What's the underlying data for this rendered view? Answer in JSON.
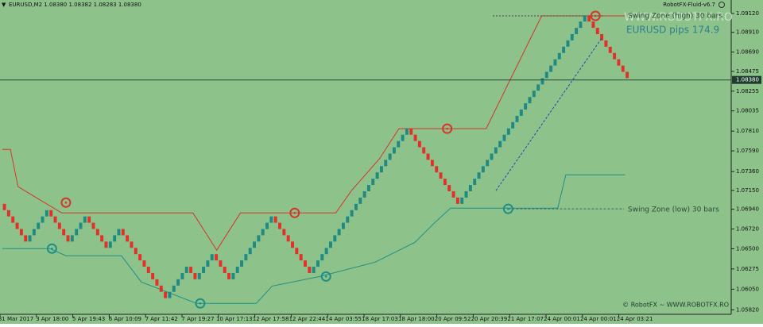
{
  "chart_data": {
    "type": "renko",
    "title": "EURUSD,M2  1.08380 1.08382 1.08283 1.08380",
    "indicator": "RobotFX-Fluid-v6.7",
    "watermark": "WWW.ROBOTFX.RO",
    "pips_text": "EURUSD pips 174.9",
    "swing_high_label": "Swing Zone (high) 30 bars",
    "swing_low_label": "Swing Zone (low) 30 bars",
    "copyright": "© RobotFX ~ WWW.ROBOTFX.RO",
    "up_color": "#1f8a84",
    "down_color": "#e3302b",
    "high_color": "#d6342c",
    "low_color": "#1f8f86",
    "background": "#8dc28a",
    "open": 1.07,
    "values": [
      1.0693,
      1.0686,
      1.0679,
      1.0672,
      1.0665,
      1.0658,
      1.0665,
      1.0672,
      1.0679,
      1.0686,
      1.0693,
      1.0686,
      1.0679,
      1.0672,
      1.0665,
      1.0658,
      1.0665,
      1.0672,
      1.0679,
      1.0686,
      1.0679,
      1.0672,
      1.0665,
      1.0658,
      1.0651,
      1.0658,
      1.0665,
      1.0672,
      1.0665,
      1.0658,
      1.0651,
      1.0644,
      1.0637,
      1.063,
      1.0623,
      1.0616,
      1.0609,
      1.0602,
      1.0595,
      1.0602,
      1.0609,
      1.0616,
      1.0623,
      1.063,
      1.0623,
      1.0616,
      1.0623,
      1.063,
      1.0637,
      1.0644,
      1.0637,
      1.063,
      1.0623,
      1.0616,
      1.0623,
      1.063,
      1.0637,
      1.0644,
      1.0651,
      1.0658,
      1.0665,
      1.0672,
      1.0679,
      1.0686,
      1.0679,
      1.0672,
      1.0665,
      1.0658,
      1.0651,
      1.0644,
      1.0637,
      1.063,
      1.0623,
      1.063,
      1.0637,
      1.0644,
      1.0651,
      1.0658,
      1.0665,
      1.0672,
      1.0679,
      1.0686,
      1.0693,
      1.07,
      1.0707,
      1.0714,
      1.0721,
      1.0728,
      1.0735,
      1.0742,
      1.0749,
      1.0756,
      1.0763,
      1.077,
      1.0777,
      1.0784,
      1.0777,
      1.077,
      1.0763,
      1.0756,
      1.0749,
      1.0742,
      1.0735,
      1.0728,
      1.0721,
      1.0714,
      1.0707,
      1.07,
      1.0707,
      1.0714,
      1.0721,
      1.0728,
      1.0735,
      1.0742,
      1.0749,
      1.0756,
      1.0763,
      1.077,
      1.0777,
      1.0784,
      1.0791,
      1.0798,
      1.0805,
      1.0812,
      1.0819,
      1.0826,
      1.0833,
      1.084,
      1.0847,
      1.0854,
      1.0861,
      1.0868,
      1.0875,
      1.0882,
      1.0889,
      1.0896,
      1.0903,
      1.091,
      1.0903,
      1.0896,
      1.0889,
      1.0882,
      1.0875,
      1.0868,
      1.0861,
      1.0854,
      1.0847,
      1.084
    ],
    "swing_high": {
      "x": [
        0,
        1.9,
        3.7,
        14,
        22.5,
        30,
        45,
        50.6,
        56.2,
        65.5,
        78.7,
        82.4,
        89,
        93.6,
        114.2,
        119.9,
        127.3,
        147
      ],
      "values": [
        1.07607,
        1.07607,
        1.07191,
        1.06899,
        1.06899,
        1.06899,
        1.06899,
        1.06484,
        1.06899,
        1.06899,
        1.06899,
        1.07147,
        1.07501,
        1.07837,
        1.07837,
        1.08386,
        1.09093,
        1.09093
      ]
    },
    "swing_low": {
      "x": [
        0,
        11.2,
        15,
        28.1,
        32.8,
        45.9,
        59.9,
        63.7,
        74.9,
        88,
        97.4,
        102.1,
        105.8,
        131.1,
        133,
        147
      ],
      "values": [
        1.06501,
        1.06501,
        1.06422,
        1.06422,
        1.0613,
        1.05891,
        1.05891,
        1.06085,
        1.06191,
        1.06351,
        1.06572,
        1.06793,
        1.06952,
        1.06952,
        1.07324,
        1.07324
      ]
    },
    "swing_high_points": {
      "x": [
        15,
        69,
        105,
        140
      ],
      "values": [
        1.07014,
        1.06899,
        1.07837,
        1.09093
      ]
    },
    "swing_low_points": {
      "x": [
        11.7,
        46.7,
        76.4,
        119.4
      ],
      "values": [
        1.06501,
        1.05891,
        1.06191,
        1.06944
      ]
    },
    "trend_line": {
      "x": [
        116.5,
        141.6
      ],
      "values": [
        1.07147,
        1.08854
      ]
    },
    "last_price": {
      "value": 1.0838,
      "label": "1.08380"
    },
    "ylim": [
      1.0577,
      1.0927
    ],
    "yticks": [
      {
        "value": 1.0912,
        "label": "1.09120"
      },
      {
        "value": 1.0891,
        "label": "1.08910"
      },
      {
        "value": 1.0869,
        "label": "1.08690"
      },
      {
        "value": 1.08475,
        "label": "1.08475"
      },
      {
        "value": 1.08255,
        "label": "1.08255"
      },
      {
        "value": 1.08035,
        "label": "1.08035"
      },
      {
        "value": 1.0781,
        "label": "1.07810"
      },
      {
        "value": 1.0759,
        "label": "1.07590"
      },
      {
        "value": 1.0736,
        "label": "1.07360"
      },
      {
        "value": 1.0715,
        "label": "1.07150"
      },
      {
        "value": 1.0694,
        "label": "1.06940"
      },
      {
        "value": 1.0672,
        "label": "1.06720"
      },
      {
        "value": 1.065,
        "label": "1.06500"
      },
      {
        "value": 1.06275,
        "label": "1.06275"
      },
      {
        "value": 1.0605,
        "label": "1.06050"
      },
      {
        "value": 1.0582,
        "label": "1.05820"
      }
    ],
    "x_labels": [
      "31 Mar 2017",
      "3 Apr 18:00",
      "5 Apr 19:43",
      "6 Apr 10:09",
      "7 Apr 11:42",
      "7 Apr 19:27",
      "10 Apr 17:13",
      "12 Apr 17:58",
      "12 Apr 22:44",
      "14 Apr 03:55",
      "18 Apr 17:03",
      "18 Apr 18:00",
      "20 Apr 09:52",
      "20 Apr 20:39",
      "21 Apr 17:07",
      "24 Apr 00:01",
      "24 Apr 00:01",
      "24 Apr 03:21"
    ]
  }
}
